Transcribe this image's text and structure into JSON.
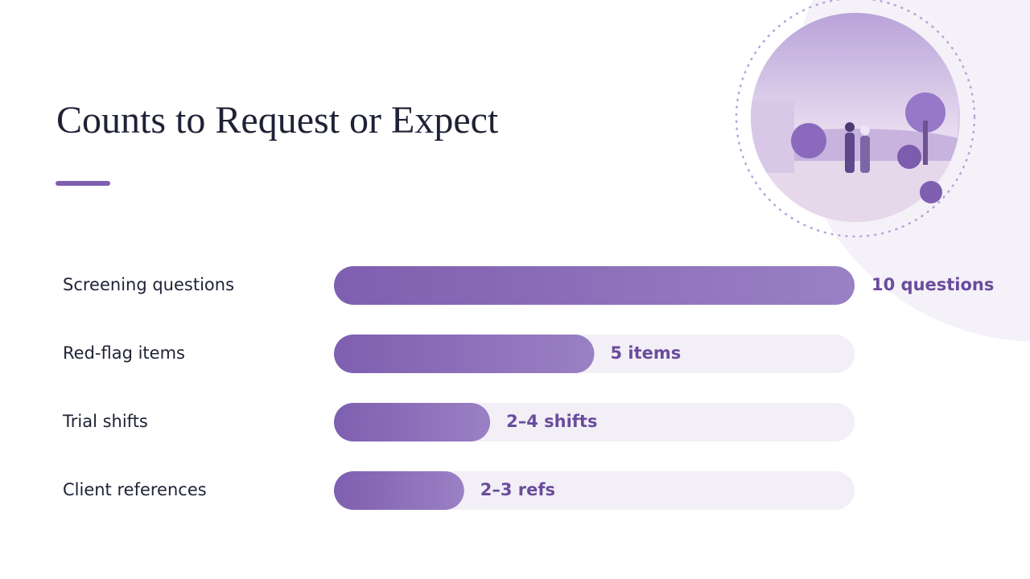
{
  "chart_data": {
    "type": "bar",
    "orientation": "horizontal",
    "title": "Counts to Request or Expect",
    "categories": [
      "Screening questions",
      "Red-flag items",
      "Trial shifts",
      "Client references"
    ],
    "values": [
      10,
      5,
      3,
      2.5
    ],
    "value_labels": [
      "10 questions",
      "5 items",
      "2–4 shifts",
      "2–3 refs"
    ],
    "color": "#7e5fb0",
    "label_color": "#6a4c9c",
    "track_color": "#f2eff6",
    "xlim": [
      0,
      10
    ]
  }
}
